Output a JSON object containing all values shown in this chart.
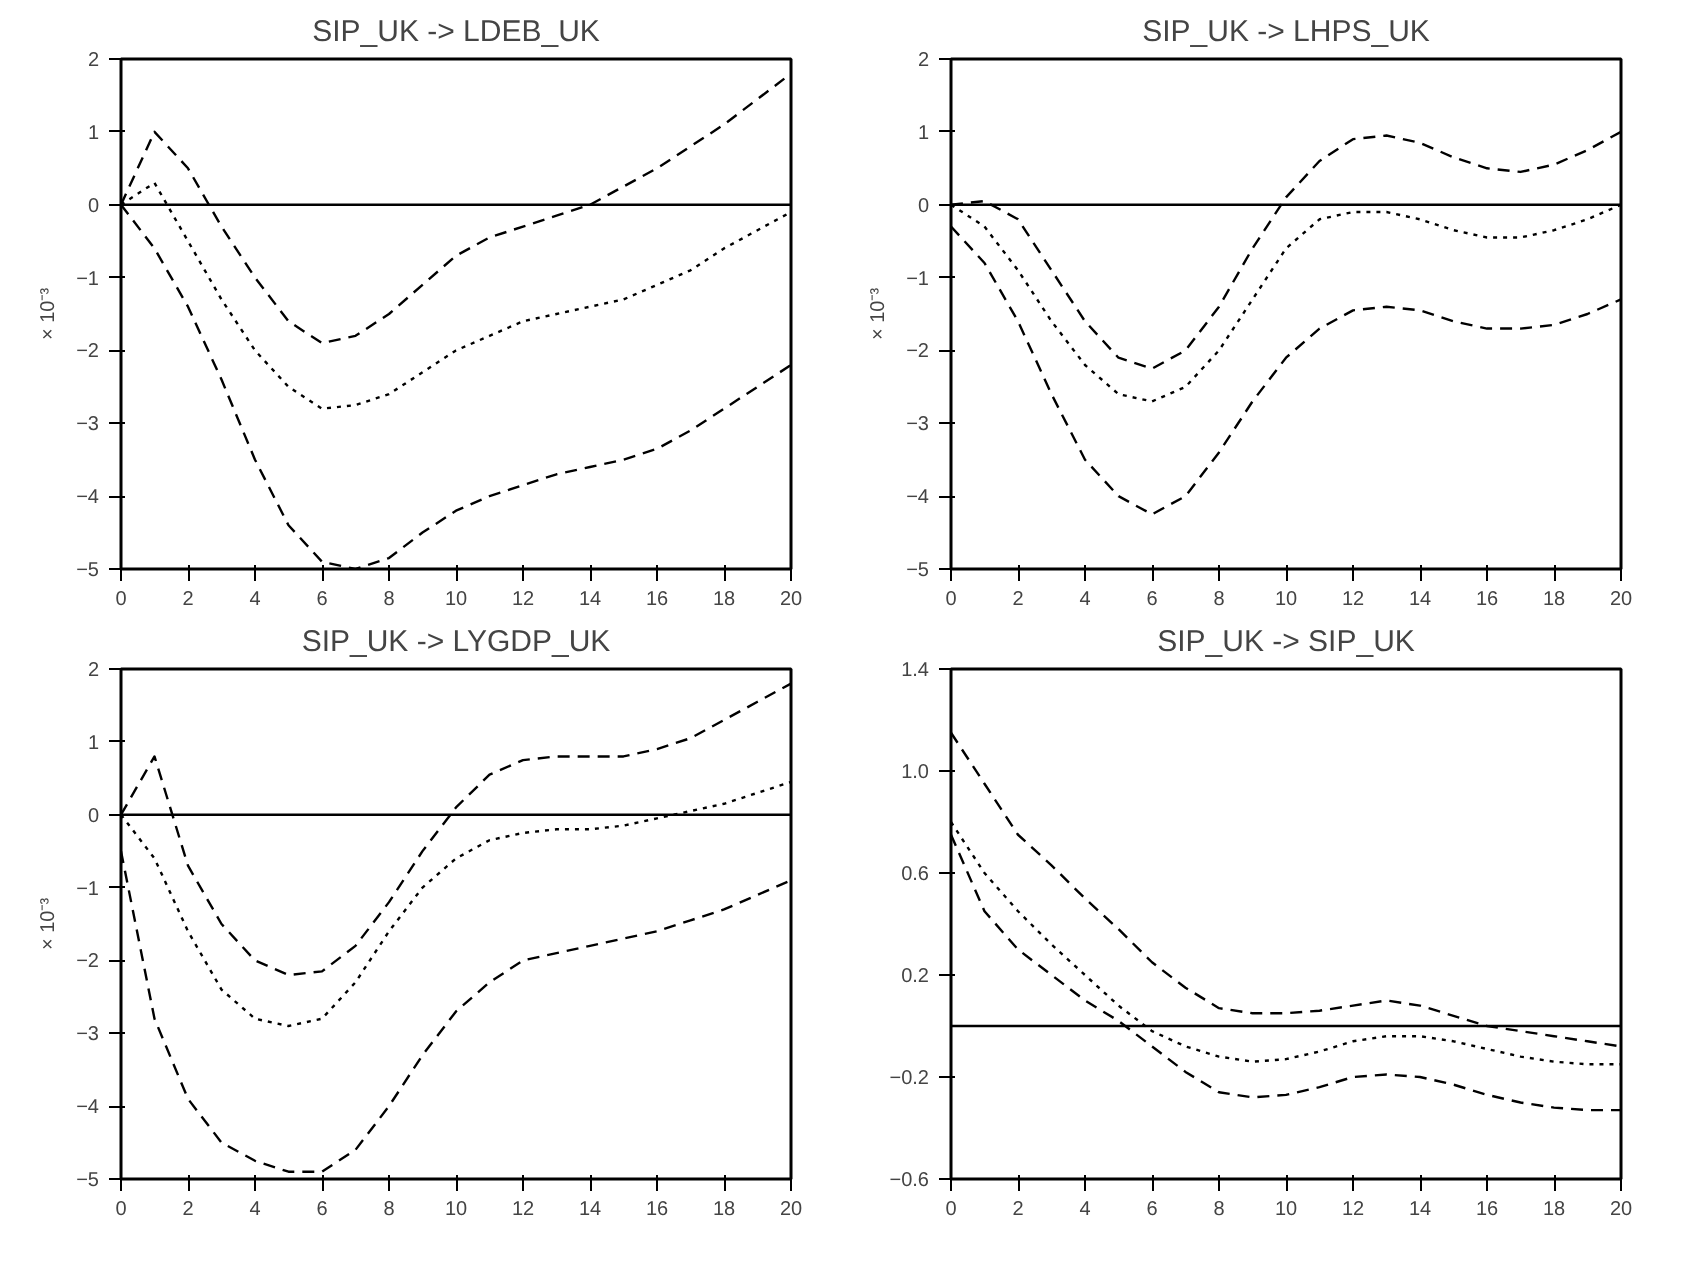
{
  "chart_data": [
    {
      "type": "line",
      "title": "SIP_UK -> LDEB_UK",
      "ylabel": "× 10⁻³",
      "x": [
        0,
        1,
        2,
        3,
        4,
        5,
        6,
        7,
        8,
        9,
        10,
        11,
        12,
        13,
        14,
        15,
        16,
        17,
        18,
        19,
        20
      ],
      "xlim": [
        0,
        20
      ],
      "xticks": [
        0,
        2,
        4,
        6,
        8,
        10,
        12,
        14,
        16,
        18,
        20
      ],
      "ylim": [
        -5,
        2
      ],
      "yticks": [
        -5,
        -4,
        -3,
        -2,
        -1,
        0,
        1,
        2
      ],
      "line_style": "dashed",
      "grid": false,
      "ref_lines": [
        {
          "axis": "y",
          "value": 0,
          "color": "#000000",
          "line_style": "solid"
        }
      ],
      "series": [
        {
          "color": "#000000",
          "values": [
            0,
            1.0,
            0.5,
            -0.3,
            -1.0,
            -1.6,
            -1.9,
            -1.8,
            -1.5,
            -1.1,
            -0.7,
            -0.45,
            -0.3,
            -0.15,
            0,
            0.25,
            0.5,
            0.8,
            1.1,
            1.45,
            1.8
          ]
        },
        {
          "color": "#000000",
          "line_style": "dotted",
          "values": [
            0,
            0.3,
            -0.5,
            -1.3,
            -2.0,
            -2.5,
            -2.8,
            -2.75,
            -2.6,
            -2.3,
            -2.0,
            -1.8,
            -1.6,
            -1.5,
            -1.4,
            -1.3,
            -1.1,
            -0.9,
            -0.6,
            -0.35,
            -0.1
          ]
        },
        {
          "color": "#000000",
          "values": [
            0,
            -0.6,
            -1.4,
            -2.4,
            -3.5,
            -4.4,
            -4.9,
            -5.0,
            -4.85,
            -4.5,
            -4.2,
            -4.0,
            -3.85,
            -3.7,
            -3.6,
            -3.5,
            -3.35,
            -3.1,
            -2.8,
            -2.5,
            -2.2
          ]
        }
      ]
    },
    {
      "type": "line",
      "title": "SIP_UK -> LHPS_UK",
      "ylabel": "× 10⁻³",
      "x": [
        0,
        1,
        2,
        3,
        4,
        5,
        6,
        7,
        8,
        9,
        10,
        11,
        12,
        13,
        14,
        15,
        16,
        17,
        18,
        19,
        20
      ],
      "xlim": [
        0,
        20
      ],
      "xticks": [
        0,
        2,
        4,
        6,
        8,
        10,
        12,
        14,
        16,
        18,
        20
      ],
      "ylim": [
        -5,
        2
      ],
      "yticks": [
        -5,
        -4,
        -3,
        -2,
        -1,
        0,
        1,
        2
      ],
      "line_style": "dashed",
      "grid": false,
      "ref_lines": [
        {
          "axis": "y",
          "value": 0,
          "color": "#000000",
          "line_style": "solid"
        }
      ],
      "series": [
        {
          "color": "#000000",
          "values": [
            0,
            0.05,
            -0.2,
            -0.9,
            -1.6,
            -2.1,
            -2.25,
            -2.0,
            -1.4,
            -0.6,
            0.1,
            0.6,
            0.9,
            0.95,
            0.85,
            0.65,
            0.5,
            0.45,
            0.55,
            0.75,
            1.0
          ]
        },
        {
          "color": "#000000",
          "line_style": "dotted",
          "values": [
            0,
            -0.3,
            -0.9,
            -1.6,
            -2.2,
            -2.6,
            -2.7,
            -2.5,
            -2.0,
            -1.3,
            -0.6,
            -0.2,
            -0.1,
            -0.1,
            -0.2,
            -0.35,
            -0.45,
            -0.45,
            -0.35,
            -0.2,
            0
          ]
        },
        {
          "color": "#000000",
          "values": [
            -0.3,
            -0.8,
            -1.6,
            -2.6,
            -3.5,
            -4.0,
            -4.25,
            -4.0,
            -3.4,
            -2.7,
            -2.1,
            -1.7,
            -1.45,
            -1.4,
            -1.45,
            -1.6,
            -1.7,
            -1.7,
            -1.65,
            -1.5,
            -1.3
          ]
        }
      ]
    },
    {
      "type": "line",
      "title": "SIP_UK -> LYGDP_UK",
      "ylabel": "× 10⁻³",
      "x": [
        0,
        1,
        2,
        3,
        4,
        5,
        6,
        7,
        8,
        9,
        10,
        11,
        12,
        13,
        14,
        15,
        16,
        17,
        18,
        19,
        20
      ],
      "xlim": [
        0,
        20
      ],
      "xticks": [
        0,
        2,
        4,
        6,
        8,
        10,
        12,
        14,
        16,
        18,
        20
      ],
      "ylim": [
        -5,
        2
      ],
      "yticks": [
        -5,
        -4,
        -3,
        -2,
        -1,
        0,
        1,
        2
      ],
      "line_style": "dashed",
      "grid": false,
      "ref_lines": [
        {
          "axis": "y",
          "value": 0,
          "color": "#000000",
          "line_style": "solid"
        }
      ],
      "series": [
        {
          "color": "#000000",
          "values": [
            0,
            0.8,
            -0.7,
            -1.5,
            -2.0,
            -2.2,
            -2.15,
            -1.8,
            -1.2,
            -0.5,
            0.1,
            0.55,
            0.75,
            0.8,
            0.8,
            0.8,
            0.9,
            1.05,
            1.3,
            1.55,
            1.8
          ]
        },
        {
          "color": "#000000",
          "line_style": "dotted",
          "values": [
            0,
            -0.6,
            -1.6,
            -2.4,
            -2.8,
            -2.9,
            -2.8,
            -2.3,
            -1.6,
            -1.0,
            -0.6,
            -0.35,
            -0.25,
            -0.2,
            -0.2,
            -0.15,
            -0.05,
            0.05,
            0.15,
            0.3,
            0.45
          ]
        },
        {
          "color": "#000000",
          "values": [
            -0.5,
            -2.8,
            -3.9,
            -4.5,
            -4.75,
            -4.9,
            -4.9,
            -4.6,
            -4.0,
            -3.3,
            -2.7,
            -2.3,
            -2.0,
            -1.9,
            -1.8,
            -1.7,
            -1.6,
            -1.45,
            -1.3,
            -1.1,
            -0.9
          ]
        }
      ]
    },
    {
      "type": "line",
      "title": "SIP_UK -> SIP_UK",
      "x": [
        0,
        1,
        2,
        3,
        4,
        5,
        6,
        7,
        8,
        9,
        10,
        11,
        12,
        13,
        14,
        15,
        16,
        17,
        18,
        19,
        20
      ],
      "xlim": [
        0,
        20
      ],
      "xticks": [
        0,
        2,
        4,
        6,
        8,
        10,
        12,
        14,
        16,
        18,
        20
      ],
      "ylim": [
        -0.6,
        1.4
      ],
      "yticks": [
        -0.6,
        -0.2,
        0.2,
        0.6,
        {
          "value": 1.0,
          "label": "1.0"
        },
        1.4
      ],
      "line_style": "dashed",
      "grid": false,
      "ref_lines": [
        {
          "axis": "y",
          "value": 0,
          "color": "#000000",
          "line_style": "solid"
        }
      ],
      "series": [
        {
          "color": "#000000",
          "values": [
            1.15,
            0.95,
            0.75,
            0.63,
            0.5,
            0.38,
            0.25,
            0.15,
            0.07,
            0.05,
            0.05,
            0.06,
            0.08,
            0.1,
            0.08,
            0.04,
            0.0,
            -0.02,
            -0.04,
            -0.06,
            -0.08
          ]
        },
        {
          "color": "#000000",
          "line_style": "dotted",
          "values": [
            0.8,
            0.6,
            0.45,
            0.32,
            0.2,
            0.08,
            -0.02,
            -0.08,
            -0.12,
            -0.14,
            -0.13,
            -0.1,
            -0.06,
            -0.04,
            -0.04,
            -0.06,
            -0.09,
            -0.12,
            -0.14,
            -0.15,
            -0.15
          ]
        },
        {
          "color": "#000000",
          "values": [
            0.75,
            0.45,
            0.3,
            0.2,
            0.1,
            0.02,
            -0.08,
            -0.18,
            -0.26,
            -0.28,
            -0.27,
            -0.24,
            -0.2,
            -0.19,
            -0.2,
            -0.23,
            -0.27,
            -0.3,
            -0.32,
            -0.33,
            -0.33
          ]
        }
      ]
    }
  ]
}
